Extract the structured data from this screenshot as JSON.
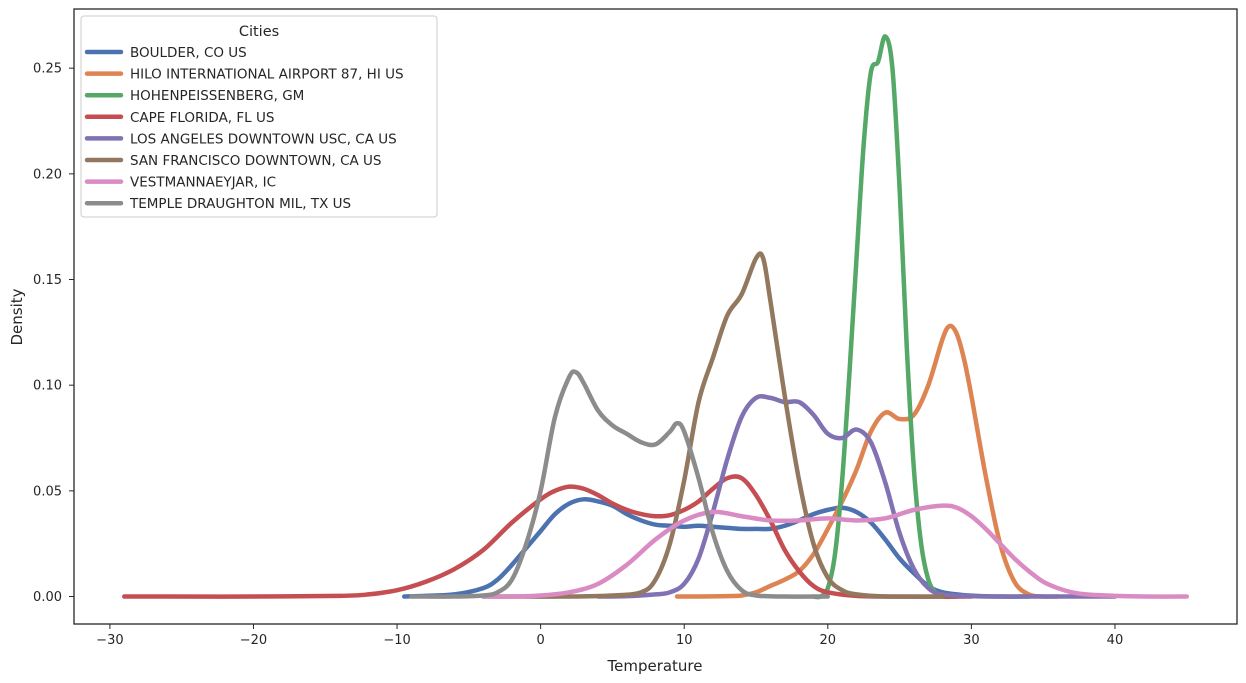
{
  "chart_data": {
    "type": "line",
    "title": "",
    "xlabel": "Temperature",
    "ylabel": "Density",
    "xlim": [
      -32.5,
      48.5
    ],
    "ylim": [
      -0.013,
      0.278
    ],
    "xticks": [
      -30,
      -20,
      -10,
      0,
      10,
      20,
      30,
      40
    ],
    "xtick_labels": [
      "−30",
      "−20",
      "−10",
      "0",
      "10",
      "20",
      "30",
      "40"
    ],
    "yticks": [
      0.0,
      0.05,
      0.1,
      0.15,
      0.2,
      0.25
    ],
    "ytick_labels": [
      "0.00",
      "0.05",
      "0.10",
      "0.15",
      "0.20",
      "0.25"
    ],
    "grid": false,
    "legend": {
      "title": "Cities",
      "position": "top-left"
    },
    "series": [
      {
        "name": "BOULDER, CO US",
        "color": "#4c72b0",
        "points": [
          [
            -9.5,
            0
          ],
          [
            -8,
            0.0003
          ],
          [
            -6,
            0.001
          ],
          [
            -4,
            0.004
          ],
          [
            -3,
            0.008
          ],
          [
            -2,
            0.015
          ],
          [
            -1,
            0.023
          ],
          [
            0,
            0.031
          ],
          [
            1,
            0.039
          ],
          [
            2,
            0.044
          ],
          [
            3,
            0.046
          ],
          [
            4,
            0.045
          ],
          [
            5,
            0.043
          ],
          [
            6,
            0.039
          ],
          [
            7,
            0.036
          ],
          [
            8,
            0.034
          ],
          [
            9,
            0.0335
          ],
          [
            10,
            0.033
          ],
          [
            11,
            0.0335
          ],
          [
            12,
            0.033
          ],
          [
            13,
            0.0325
          ],
          [
            14,
            0.032
          ],
          [
            15,
            0.032
          ],
          [
            16,
            0.032
          ],
          [
            17,
            0.0335
          ],
          [
            18,
            0.036
          ],
          [
            19,
            0.039
          ],
          [
            20,
            0.041
          ],
          [
            21,
            0.042
          ],
          [
            22,
            0.04
          ],
          [
            23,
            0.035
          ],
          [
            24,
            0.027
          ],
          [
            25,
            0.018
          ],
          [
            26,
            0.011
          ],
          [
            27,
            0.005
          ],
          [
            28,
            0.002
          ],
          [
            30,
            0.0004
          ],
          [
            32,
            0
          ],
          [
            34,
            0
          ]
        ]
      },
      {
        "name": "HILO INTERNATIONAL AIRPORT 87, HI US",
        "color": "#dd8452",
        "points": [
          [
            9.5,
            0
          ],
          [
            11,
            0
          ],
          [
            13,
            0.0002
          ],
          [
            14,
            0.0005
          ],
          [
            15,
            0.002
          ],
          [
            16,
            0.005
          ],
          [
            17,
            0.008
          ],
          [
            18,
            0.012
          ],
          [
            19,
            0.02
          ],
          [
            20,
            0.032
          ],
          [
            21,
            0.045
          ],
          [
            22,
            0.06
          ],
          [
            23,
            0.078
          ],
          [
            24,
            0.087
          ],
          [
            25,
            0.084
          ],
          [
            26,
            0.086
          ],
          [
            27,
            0.1
          ],
          [
            28,
            0.122
          ],
          [
            28.5,
            0.128
          ],
          [
            29,
            0.124
          ],
          [
            29.5,
            0.112
          ],
          [
            30,
            0.095
          ],
          [
            31,
            0.057
          ],
          [
            32,
            0.025
          ],
          [
            33,
            0.007
          ],
          [
            34,
            0.001
          ],
          [
            35,
            0
          ],
          [
            36,
            0
          ]
        ]
      },
      {
        "name": "HOHENPEISSENBERG, GM",
        "color": "#55a868",
        "points": [
          [
            19,
            0
          ],
          [
            19.5,
            0
          ],
          [
            20,
            0.004
          ],
          [
            20.5,
            0.02
          ],
          [
            21,
            0.055
          ],
          [
            21.5,
            0.105
          ],
          [
            22,
            0.16
          ],
          [
            22.5,
            0.214
          ],
          [
            23,
            0.248
          ],
          [
            23.5,
            0.253
          ],
          [
            24,
            0.265
          ],
          [
            24.5,
            0.25
          ],
          [
            25,
            0.193
          ],
          [
            25.5,
            0.118
          ],
          [
            26,
            0.06
          ],
          [
            26.5,
            0.025
          ],
          [
            27,
            0.008
          ],
          [
            27.5,
            0.002
          ],
          [
            28,
            0
          ],
          [
            29,
            0
          ]
        ]
      },
      {
        "name": "CAPE FLORIDA, FL US",
        "color": "#c44e52",
        "points": [
          [
            -29,
            0
          ],
          [
            -26,
            0
          ],
          [
            -20,
            0
          ],
          [
            -14,
            0.0003
          ],
          [
            -12,
            0.001
          ],
          [
            -10,
            0.003
          ],
          [
            -8,
            0.007
          ],
          [
            -6,
            0.013
          ],
          [
            -4,
            0.022
          ],
          [
            -2,
            0.035
          ],
          [
            0,
            0.046
          ],
          [
            1,
            0.05
          ],
          [
            2,
            0.052
          ],
          [
            3,
            0.051
          ],
          [
            4,
            0.048
          ],
          [
            5,
            0.044
          ],
          [
            6,
            0.041
          ],
          [
            7,
            0.039
          ],
          [
            8,
            0.038
          ],
          [
            9,
            0.0385
          ],
          [
            10,
            0.041
          ],
          [
            11,
            0.045
          ],
          [
            12,
            0.051
          ],
          [
            13,
            0.056
          ],
          [
            14,
            0.056
          ],
          [
            15,
            0.048
          ],
          [
            16,
            0.036
          ],
          [
            17,
            0.022
          ],
          [
            18,
            0.012
          ],
          [
            19,
            0.005
          ],
          [
            20,
            0.002
          ],
          [
            22,
            0.0003
          ],
          [
            24,
            0
          ],
          [
            30,
            0
          ]
        ]
      },
      {
        "name": "LOS ANGELES DOWNTOWN USC, CA US",
        "color": "#8172b3",
        "points": [
          [
            4,
            0
          ],
          [
            6,
            0.0002
          ],
          [
            8,
            0.001
          ],
          [
            9,
            0.002
          ],
          [
            10,
            0.006
          ],
          [
            11,
            0.018
          ],
          [
            12,
            0.04
          ],
          [
            13,
            0.065
          ],
          [
            14,
            0.085
          ],
          [
            15,
            0.094
          ],
          [
            16,
            0.094
          ],
          [
            17,
            0.092
          ],
          [
            18,
            0.092
          ],
          [
            19,
            0.086
          ],
          [
            20,
            0.077
          ],
          [
            21,
            0.075
          ],
          [
            22,
            0.079
          ],
          [
            23,
            0.073
          ],
          [
            24,
            0.054
          ],
          [
            25,
            0.03
          ],
          [
            26,
            0.013
          ],
          [
            27,
            0.004
          ],
          [
            28,
            0.001
          ],
          [
            30,
            0.0002
          ],
          [
            32,
            0
          ],
          [
            40,
            0
          ]
        ]
      },
      {
        "name": "SAN FRANCISCO DOWNTOWN, CA US",
        "color": "#937860",
        "points": [
          [
            -4,
            0
          ],
          [
            -2,
            0
          ],
          [
            2,
            0
          ],
          [
            5,
            0.0005
          ],
          [
            7,
            0.002
          ],
          [
            8,
            0.008
          ],
          [
            9,
            0.025
          ],
          [
            10,
            0.055
          ],
          [
            11,
            0.092
          ],
          [
            12,
            0.113
          ],
          [
            13,
            0.133
          ],
          [
            14,
            0.143
          ],
          [
            15,
            0.16
          ],
          [
            15.5,
            0.16
          ],
          [
            16,
            0.14
          ],
          [
            17,
            0.095
          ],
          [
            18,
            0.055
          ],
          [
            19,
            0.025
          ],
          [
            20,
            0.009
          ],
          [
            21,
            0.003
          ],
          [
            22,
            0.001
          ],
          [
            24,
            0
          ],
          [
            28,
            0
          ]
        ]
      },
      {
        "name": "VESTMANNAEYJAR, IC",
        "color": "#da8bc3",
        "points": [
          [
            -4,
            0
          ],
          [
            -2,
            0
          ],
          [
            0,
            0.0005
          ],
          [
            2,
            0.002
          ],
          [
            4,
            0.006
          ],
          [
            6,
            0.015
          ],
          [
            8,
            0.027
          ],
          [
            10,
            0.036
          ],
          [
            12,
            0.04
          ],
          [
            14,
            0.038
          ],
          [
            16,
            0.036
          ],
          [
            18,
            0.036
          ],
          [
            20,
            0.037
          ],
          [
            22,
            0.036
          ],
          [
            24,
            0.037
          ],
          [
            26,
            0.041
          ],
          [
            28,
            0.043
          ],
          [
            29,
            0.042
          ],
          [
            30,
            0.038
          ],
          [
            31,
            0.032
          ],
          [
            32,
            0.025
          ],
          [
            33,
            0.018
          ],
          [
            34,
            0.012
          ],
          [
            35,
            0.007
          ],
          [
            36,
            0.004
          ],
          [
            37,
            0.002
          ],
          [
            38,
            0.001
          ],
          [
            40,
            0.0003
          ],
          [
            42,
            0
          ],
          [
            45,
            0
          ]
        ]
      },
      {
        "name": "TEMPLE DRAUGHTON MIL, TX US",
        "color": "#8c8c8c",
        "points": [
          [
            -9,
            0
          ],
          [
            -6,
            0
          ],
          [
            -4,
            0.0005
          ],
          [
            -3,
            0.002
          ],
          [
            -2,
            0.008
          ],
          [
            -1,
            0.025
          ],
          [
            0,
            0.05
          ],
          [
            1,
            0.085
          ],
          [
            2,
            0.104
          ],
          [
            2.5,
            0.106
          ],
          [
            3,
            0.101
          ],
          [
            4,
            0.088
          ],
          [
            5,
            0.081
          ],
          [
            6,
            0.077
          ],
          [
            7,
            0.073
          ],
          [
            8,
            0.072
          ],
          [
            9,
            0.078
          ],
          [
            9.5,
            0.082
          ],
          [
            10,
            0.078
          ],
          [
            11,
            0.056
          ],
          [
            12,
            0.03
          ],
          [
            13,
            0.012
          ],
          [
            14,
            0.003
          ],
          [
            15,
            0.0005
          ],
          [
            17,
            0
          ],
          [
            20,
            0
          ]
        ]
      }
    ]
  }
}
